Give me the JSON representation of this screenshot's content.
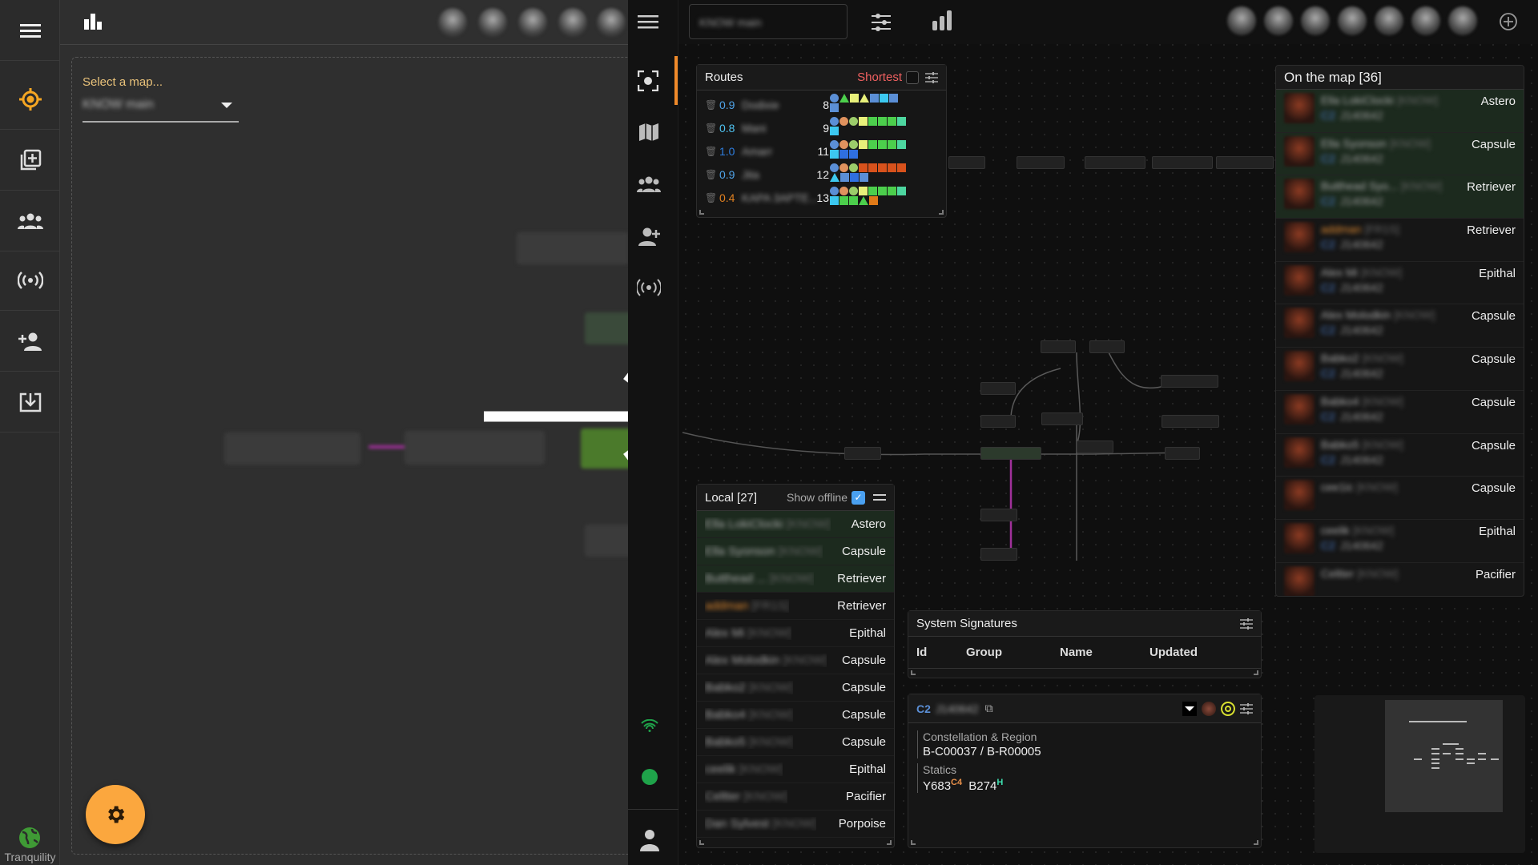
{
  "left_app": {
    "sidebar": [
      {
        "icon": "menu-icon"
      },
      {
        "icon": "locate-icon"
      },
      {
        "icon": "add-map-icon"
      },
      {
        "icon": "group-icon"
      },
      {
        "icon": "broadcast-icon"
      },
      {
        "icon": "add-person-icon"
      },
      {
        "icon": "download-icon"
      }
    ],
    "select_label": "Select a map...",
    "select_value": "KNOW main",
    "server_status": "Tranquility",
    "accent": "#fba73e"
  },
  "right_app": {
    "map_name": "KNOW main",
    "routes": {
      "title": "Shortest",
      "header": "Routes",
      "rows": [
        {
          "sec": "0.9",
          "sec_color": "#4fa3e8",
          "name": "Dodixie",
          "jumps": "8",
          "shapes": [
            "c:blue",
            "t:green",
            "s:yellow",
            "t:yellow",
            "s:blue",
            "s:cyan",
            "s:blue",
            "s:blue"
          ]
        },
        {
          "sec": "0.8",
          "sec_color": "#4fc3f0",
          "name": "Mani",
          "jumps": "9",
          "shapes": [
            "c:blue",
            "c:orange",
            "c:lgreen",
            "s:yellow",
            "s:green",
            "s:green",
            "s:green",
            "s:teal",
            "s:cyan"
          ]
        },
        {
          "sec": "1.0",
          "sec_color": "#2f7fe0",
          "name": "Amarr",
          "jumps": "11",
          "shapes": [
            "c:blue",
            "c:orange",
            "c:lgreen",
            "s:yellow",
            "s:green",
            "s:green",
            "s:green",
            "s:teal",
            "s:cyan",
            "s:blue2",
            "s:blue2"
          ]
        },
        {
          "sec": "0.9",
          "sec_color": "#4fa3e8",
          "name": "Jita",
          "jumps": "12",
          "shapes": [
            "c:blue",
            "c:orange",
            "c:lgreen",
            "s:red",
            "s:red",
            "s:red",
            "s:red",
            "s:red",
            "t:cyan",
            "s:blue",
            "s:blue2",
            "s:blue"
          ]
        },
        {
          "sec": "0.4",
          "sec_color": "#e08020",
          "name": "KAPA 3APTE...",
          "jumps": "13",
          "shapes": [
            "c:blue",
            "c:orange",
            "c:lgreen",
            "s:yellow",
            "s:green",
            "s:green",
            "s:green",
            "s:teal",
            "s:cyan",
            "s:green",
            "s:green",
            "t:green",
            "s:orange"
          ]
        }
      ]
    },
    "shape_colors": {
      "blue": "#5b8fd6",
      "green": "#4ccf4c",
      "yellow": "#e8f07a",
      "cyan": "#3cc8f0",
      "orange": "#e0925e",
      "lgreen": "#9ccc6a",
      "teal": "#4dd6a0",
      "red": "#d8521c",
      "blue2": "#2f6fe0",
      "orangesq": "#e07a18"
    },
    "local": {
      "title": "Local [27]",
      "show_offline": "Show offline",
      "show_offline_checked": true,
      "rows": [
        {
          "name": "Ella LokiClocki",
          "corp": "[KNOW]",
          "ship": "Astero",
          "hl": true
        },
        {
          "name": "Ella Syonson",
          "corp": "[KNOW]",
          "ship": "Capsule",
          "hl": true
        },
        {
          "name": "Butthead ...",
          "corp": "[KNOW]",
          "ship": "Retriever",
          "hl": true
        },
        {
          "name": "addman",
          "corp": "[FR1S]",
          "ship": "Retriever",
          "orange": true
        },
        {
          "name": "Alex Mi",
          "corp": "[KNOW]",
          "ship": "Epithal"
        },
        {
          "name": "Alex Molodkin",
          "corp": "[KNOW]",
          "ship": "Capsule"
        },
        {
          "name": "Babko2",
          "corp": "[KNOW]",
          "ship": "Capsule"
        },
        {
          "name": "Babko4",
          "corp": "[KNOW]",
          "ship": "Capsule"
        },
        {
          "name": "Babko5",
          "corp": "[KNOW]",
          "ship": "Capsule"
        },
        {
          "name": "ceelik",
          "corp": "[KNOW]",
          "ship": "Epithal"
        },
        {
          "name": "Celtter",
          "corp": "[KNOW]",
          "ship": "Pacifier"
        },
        {
          "name": "Dan Sylvest",
          "corp": "[KNOW]",
          "ship": "Porpoise"
        }
      ]
    },
    "on_map": {
      "title": "On the map [36]",
      "rows": [
        {
          "name": "Ella LokiClocki",
          "corp": "[KNOW]",
          "cls": "C2",
          "sys": "J140642",
          "ship": "Astero",
          "hl": true
        },
        {
          "name": "Ella Syonson",
          "corp": "[KNOW]",
          "cls": "C2",
          "sys": "J140642",
          "ship": "Capsule",
          "hl": true
        },
        {
          "name": "Butthead Syo...",
          "corp": "[KNOW]",
          "cls": "C2",
          "sys": "J140642",
          "ship": "Retriever",
          "hl": true
        },
        {
          "name": "addman",
          "corp": "[FR1S]",
          "cls": "C2",
          "sys": "J140642",
          "ship": "Retriever",
          "orange": true
        },
        {
          "name": "Alex Mi",
          "corp": "[KNOW]",
          "cls": "C2",
          "sys": "J140642",
          "ship": "Epithal"
        },
        {
          "name": "Alex Molodkin",
          "corp": "[KNOW]",
          "cls": "C2",
          "sys": "J140642",
          "ship": "Capsule"
        },
        {
          "name": "Babko2",
          "corp": "[KNOW]",
          "cls": "C2",
          "sys": "J140642",
          "ship": "Capsule"
        },
        {
          "name": "Babko4",
          "corp": "[KNOW]",
          "cls": "C2",
          "sys": "J140642",
          "ship": "Capsule"
        },
        {
          "name": "Babko5",
          "corp": "[KNOW]",
          "cls": "C2",
          "sys": "J140642",
          "ship": "Capsule"
        },
        {
          "name": "cee1ic",
          "corp": "[KNOW]",
          "cls": "",
          "sys": "",
          "ship": "Capsule"
        },
        {
          "name": "ceelik",
          "corp": "[KNOW]",
          "cls": "C2",
          "sys": "J140642",
          "ship": "Epithal"
        },
        {
          "name": "Celtter",
          "corp": "[KNOW]",
          "cls": "",
          "sys": "",
          "ship": "Pacifier"
        }
      ]
    },
    "signatures": {
      "title": "System Signatures",
      "columns": [
        "Id",
        "Group",
        "Name",
        "Updated"
      ]
    },
    "system_info": {
      "class": "C2",
      "name": "J140642",
      "constellation_label": "Constellation & Region",
      "constellation_value": "B-C00037 / B-R00005",
      "statics_label": "Statics",
      "statics": [
        {
          "code": "Y683",
          "dest": "C4",
          "color": "#e8904a"
        },
        {
          "code": "B274",
          "dest": "H",
          "color": "#3ee0b0"
        }
      ]
    },
    "status_color": "#1fa34a"
  }
}
